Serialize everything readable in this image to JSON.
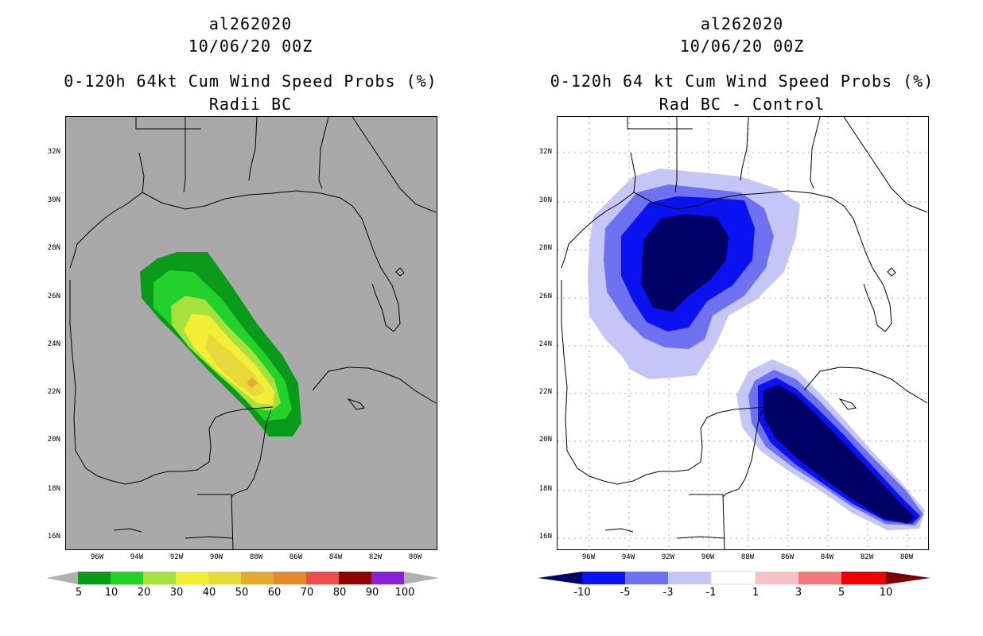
{
  "left": {
    "storm_id": "al262020",
    "date": "10/06/20 00Z",
    "title": "0-120h 64kt Cum Wind Speed Probs (%)",
    "subtitle": "Radii BC",
    "colors": {
      "background": "#a9a9a9",
      "p5": "#0a9a1a",
      "p10": "#22d12a",
      "p20": "#a6e23e",
      "p30": "#f2ef36",
      "p40": "#e7d93a",
      "p50": "#e4aa34",
      "p60": "#e28a2c",
      "p70": "#f04a4a",
      "p80": "#8f0000",
      "p90": "#8a20d8",
      "p100": "#b0b0b0"
    },
    "colorbar": {
      "labels": [
        "5",
        "10",
        "20",
        "30",
        "40",
        "50",
        "60",
        "70",
        "80",
        "90",
        "100"
      ]
    }
  },
  "right": {
    "storm_id": "al262020",
    "date": "10/06/20 00Z",
    "title": "0-120h 64 kt Cum Wind Speed Probs (%)",
    "subtitle": "Rad BC - Control",
    "colors": {
      "m10": "#000066",
      "m5": "#0a12f0",
      "m3": "#6e72f0",
      "m1": "#c4c6f6",
      "zero": "#ffffff",
      "p1": "#f7c2c6",
      "p3": "#f27a7a",
      "p5": "#f00000",
      "p10": "#7a0000"
    },
    "colorbar": {
      "labels": [
        "-10",
        "-5",
        "-3",
        "-1",
        "1",
        "3",
        "5",
        "10"
      ]
    }
  },
  "axes": {
    "lat_labels": [
      "32N",
      "30N",
      "28N",
      "26N",
      "24N",
      "22N",
      "20N",
      "18N",
      "16N"
    ],
    "lon_labels": [
      "96W",
      "94W",
      "92W",
      "90W",
      "88W",
      "86W",
      "84W",
      "82W",
      "80W"
    ]
  }
}
